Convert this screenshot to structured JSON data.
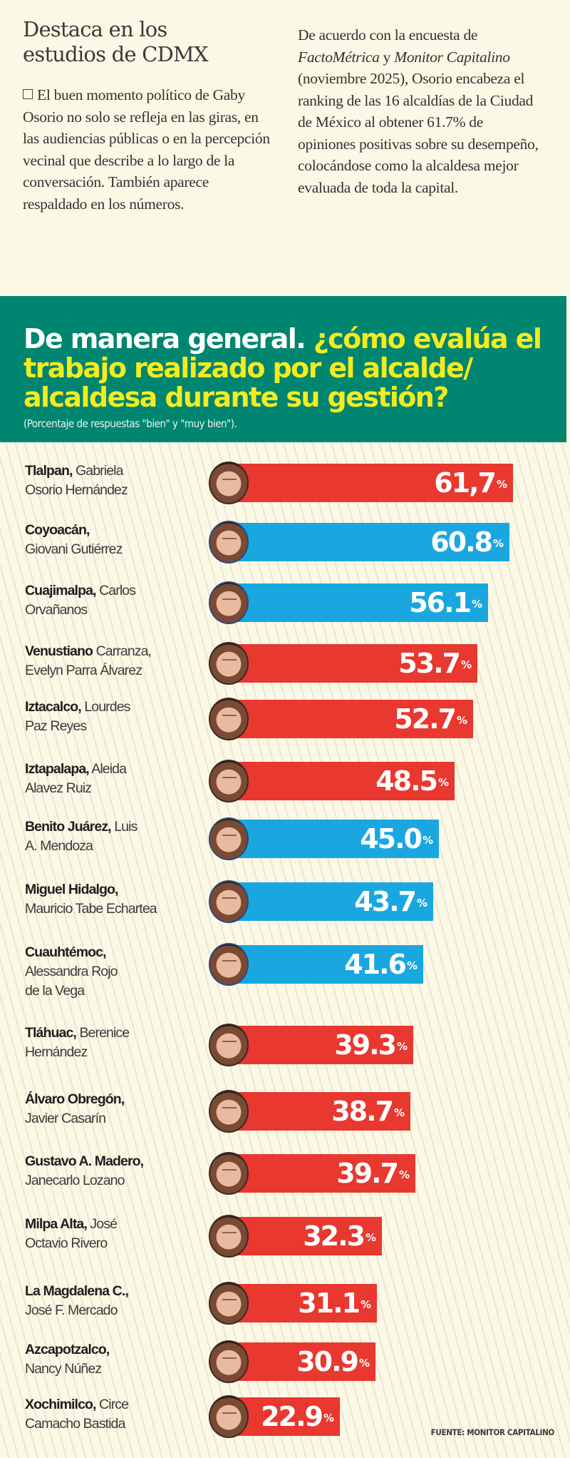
{
  "intro": {
    "left": {
      "title_line1": "Destaca en los",
      "title_line2": "estudios de CDMX",
      "body": "El buen momento político de Gaby Osorio no solo se refleja en las giras, en las audiencias públicas o en la percepción vecinal que describe a lo largo de la conversación. También aparece respaldado en los números."
    },
    "right": {
      "body_part1": "De acuerdo con la encuesta de ",
      "source1": "FactoMétrica",
      "body_part2": " y ",
      "source2": "Monitor Capitalino",
      "body_part3": " (noviembre 2025), Osorio encabeza el ranking de las 16 alcaldías de la Ciudad de México al obtener 61.7% de opiniones positivas sobre su desempeño, colocándose como la alcaldesa mejor evaluada de toda la capital."
    }
  },
  "header": {
    "title_white": "De manera general. ",
    "title_yellow": "¿cómo evalúa el trabajo realizado por el alcalde/ alcaldesa durante su gestión?",
    "subtitle": "(Porcentaje de respuestas \"bien\" y \"muy bien\").",
    "band_color": "#008570",
    "title_accent_color": "#f3ec1f"
  },
  "colors": {
    "red": "#e8382f",
    "blue": "#1aa7e0",
    "background": "#fbf8e6"
  },
  "chart_data": {
    "type": "bar",
    "orientation": "horizontal",
    "title": "De manera general. ¿cómo evalúa el trabajo realizado por el alcalde/ alcaldesa durante su gestión?",
    "subtitle": "(Porcentaje de respuestas \"bien\" y \"muy bien\").",
    "xlabel": "",
    "ylabel": "",
    "unit": "%",
    "grid": false,
    "legend": null,
    "categories": [
      "Tlalpan, Gabriela Osorio Hernández",
      "Coyoacán, Giovani Gutiérrez",
      "Cuajimalpa, Carlos Orvañanos",
      "Venustiano Carranza, Evelyn Parra Álvarez",
      "Iztacalco, Lourdes Paz Reyes",
      "Iztapalapa, Aleida Alavez Ruiz",
      "Benito Juárez, Luis A. Mendoza",
      "Miguel Hidalgo, Mauricio Tabe Echartea",
      "Cuauhtémoc, Alessandra Rojo de la Vega",
      "Tláhuac, Berenice Hernández",
      "Álvaro Obregón, Javier Casarín",
      "Gustavo A. Madero, Janecarlo Lozano",
      "Milpa Alta, José Octavio Rivero",
      "La Magdalena C., José F. Mercado",
      "Azcapotzalco, Nancy Núñez",
      "Xochimilco, Circe Camacho Bastida"
    ],
    "values": [
      61.7,
      60.8,
      56.1,
      53.7,
      52.7,
      48.5,
      45.0,
      43.7,
      41.6,
      39.3,
      38.7,
      39.7,
      32.3,
      31.1,
      30.9,
      22.9
    ],
    "value_labels": [
      "61,7",
      "60.8",
      "56.1",
      "53.7",
      "52.7",
      "48.5",
      "45.0",
      "43.7",
      "41.6",
      "39.3",
      "38.7",
      "39.7",
      "32.3",
      "31.1",
      "30.9",
      "22.9"
    ],
    "bar_colors": [
      "red",
      "blue",
      "blue",
      "red",
      "red",
      "red",
      "blue",
      "blue",
      "blue",
      "red",
      "red",
      "red",
      "red",
      "red",
      "red",
      "red"
    ],
    "source": "FUENTE: MONITOR CAPITALINO"
  },
  "rows": [
    {
      "borough": "Tlalpan,",
      "name_line1": "Gabriela",
      "name_line2": "Osorio Hernández",
      "name_line3": "",
      "value": "61,7",
      "pct": "%"
    },
    {
      "borough": "Coyoacán,",
      "name_line1": "",
      "name_line2": "Giovani Gutiérrez",
      "name_line3": "",
      "value": "60.8",
      "pct": "%"
    },
    {
      "borough": "Cuajimalpa,",
      "name_line1": "Carlos",
      "name_line2": "Orvañanos",
      "name_line3": "",
      "value": "56.1",
      "pct": "%"
    },
    {
      "borough": "Venustiano",
      "name_line1": "Carranza,",
      "name_line2": "Evelyn Parra Álvarez",
      "name_line3": "",
      "value": "53.7",
      "pct": "%"
    },
    {
      "borough": "Iztacalco,",
      "name_line1": "Lourdes",
      "name_line2": "Paz Reyes",
      "name_line3": "",
      "value": "52.7",
      "pct": "%"
    },
    {
      "borough": "Iztapalapa,",
      "name_line1": "Aleida",
      "name_line2": "Alavez Ruiz",
      "name_line3": "",
      "value": "48.5",
      "pct": "%"
    },
    {
      "borough": "Benito Juárez,",
      "name_line1": "Luis",
      "name_line2": "A. Mendoza",
      "name_line3": "",
      "value": "45.0",
      "pct": "%"
    },
    {
      "borough": "Miguel Hidalgo,",
      "name_line1": "",
      "name_line2": "Mauricio Tabe Echartea",
      "name_line3": "",
      "value": "43.7",
      "pct": "%"
    },
    {
      "borough": "Cuauhtémoc,",
      "name_line1": "",
      "name_line2": "Alessandra Rojo",
      "name_line3": "de la Vega",
      "value": "41.6",
      "pct": "%"
    },
    {
      "borough": "Tláhuac,",
      "name_line1": "Berenice",
      "name_line2": "Hernández",
      "name_line3": "",
      "value": "39.3",
      "pct": "%"
    },
    {
      "borough": "Álvaro Obregón,",
      "name_line1": "",
      "name_line2": "Javier Casarín",
      "name_line3": "",
      "value": "38.7",
      "pct": "%"
    },
    {
      "borough": "Gustavo A. Madero,",
      "name_line1": "",
      "name_line2": "Janecarlo Lozano",
      "name_line3": "",
      "value": "39.7",
      "pct": "%"
    },
    {
      "borough": "Milpa Alta,",
      "name_line1": "José",
      "name_line2": "Octavio Rivero",
      "name_line3": "",
      "value": "32.3",
      "pct": "%"
    },
    {
      "borough": "La Magdalena C.,",
      "name_line1": "",
      "name_line2": "José F. Mercado",
      "name_line3": "",
      "value": "31.1",
      "pct": "%"
    },
    {
      "borough": "Azcapotzalco,",
      "name_line1": "",
      "name_line2": "Nancy Núñez",
      "name_line3": "",
      "value": "30.9",
      "pct": "%"
    },
    {
      "borough": "Xochimilco,",
      "name_line1": "Circe",
      "name_line2": "Camacho Bastida",
      "name_line3": "",
      "value": "22.9",
      "pct": "%"
    }
  ],
  "footer": {
    "source": "FUENTE: MONITOR CAPITALINO"
  }
}
